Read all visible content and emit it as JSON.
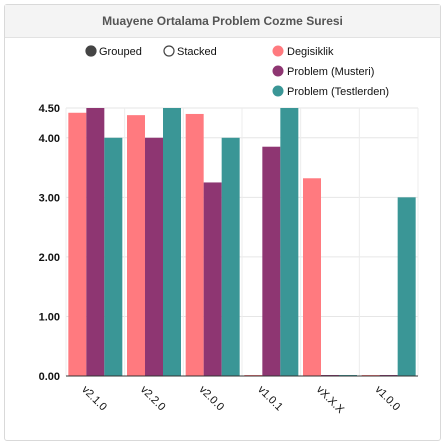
{
  "chart_data": {
    "type": "bar",
    "title": "Muayene Ortalama Problem Cozme Suresi",
    "categories": [
      "v2.1.0",
      "v2.2.0",
      "v2.0.0",
      "v1.0.1",
      "vX.X.X",
      "v1.0.0"
    ],
    "series": [
      {
        "name": "Degisiklik",
        "color": "#ff7a7f",
        "values": [
          4.42,
          4.38,
          4.4,
          0.0,
          3.32,
          0.0
        ]
      },
      {
        "name": "Problem (Musteri)",
        "color": "#8e3672",
        "values": [
          4.5,
          4.0,
          3.25,
          3.85,
          0.0,
          0.0
        ]
      },
      {
        "name": "Problem (Testlerden)",
        "color": "#3a9696",
        "values": [
          4.0,
          4.5,
          4.0,
          4.5,
          0.0,
          3.0
        ]
      }
    ],
    "ylim": [
      0,
      4.5
    ],
    "yticks": [
      "0.00",
      "1.00",
      "2.00",
      "3.00",
      "4.00",
      "4.50"
    ],
    "ytick_values": [
      0,
      1,
      2,
      3,
      4,
      4.5
    ],
    "grid": true,
    "legend_position": "top-right"
  },
  "controls": {
    "grouped_label": "Grouped",
    "stacked_label": "Stacked",
    "selected": "grouped"
  }
}
